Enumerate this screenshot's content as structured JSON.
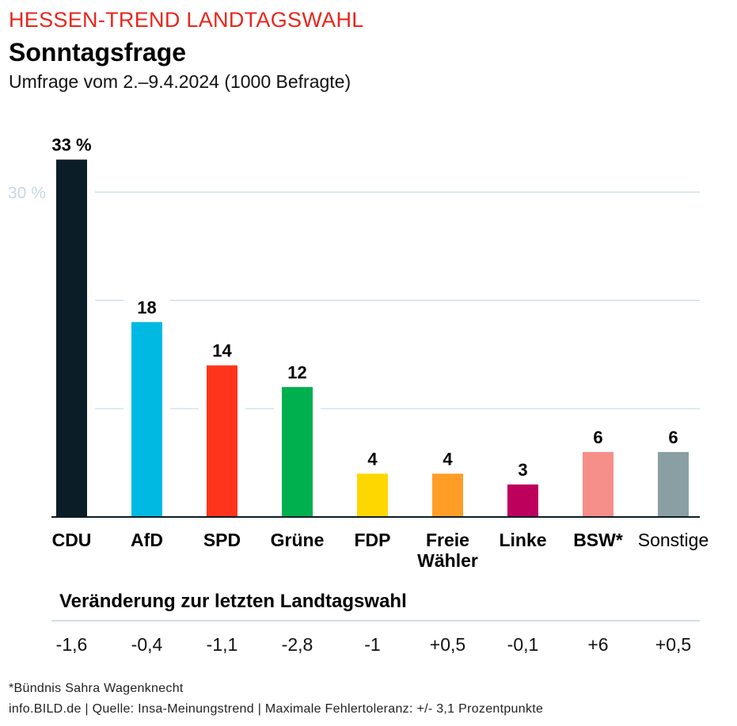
{
  "header": {
    "kicker": "HESSEN-TREND LANDTAGSWAHL",
    "title": "Sonntagsfrage",
    "subtitle": "Umfrage vom 2.–9.4.2024 (1000 Befragte)"
  },
  "chart_data": {
    "type": "bar",
    "title": "Sonntagsfrage",
    "subtitle": "Umfrage vom 2.–9.4.2024 (1000 Befragte)",
    "xlabel": "",
    "ylabel": "",
    "ylim": [
      0,
      33
    ],
    "yticks": [
      10,
      20,
      30
    ],
    "ytick_labels": [
      "",
      "",
      "30 %"
    ],
    "grid": true,
    "categories": [
      "CDU",
      "AfD",
      "SPD",
      "Grüne",
      "FDP",
      "Freie Wähler",
      "Linke",
      "BSW*",
      "Sonstige"
    ],
    "values": [
      33,
      18,
      14,
      12,
      4,
      4,
      3,
      6,
      6
    ],
    "value_labels": [
      "33 %",
      "18",
      "14",
      "12",
      "4",
      "4",
      "3",
      "6",
      "6"
    ],
    "colors": [
      "#0b1d26",
      "#00b9e3",
      "#ff341c",
      "#00b04f",
      "#ffd700",
      "#ff9d27",
      "#bd005c",
      "#f68e8a",
      "#8a9fa3"
    ],
    "changes_title": "Veränderung zur letzten Landtagswahl",
    "changes": [
      "-1,6",
      "-0,4",
      "-1,1",
      "-2,8",
      "-1",
      "+0,5",
      "-0,1",
      "+6",
      "+0,5"
    ]
  },
  "categories_display": [
    {
      "line1": "CDU",
      "line2": ""
    },
    {
      "line1": "AfD",
      "line2": ""
    },
    {
      "line1": "SPD",
      "line2": ""
    },
    {
      "line1": "Grüne",
      "line2": ""
    },
    {
      "line1": "FDP",
      "line2": ""
    },
    {
      "line1": "Freie",
      "line2": "Wähler"
    },
    {
      "line1": "Linke",
      "line2": ""
    },
    {
      "line1": "BSW*",
      "line2": ""
    },
    {
      "line1": "Sonstige",
      "line2": ""
    }
  ],
  "footer": {
    "note": "*Bündnis Sahra Wagenknecht",
    "source": "info.BILD.de | Quelle: Insa-Meinungstrend | Maximale Fehlertoleranz: +/- 3,1 Prozentpunkte"
  }
}
